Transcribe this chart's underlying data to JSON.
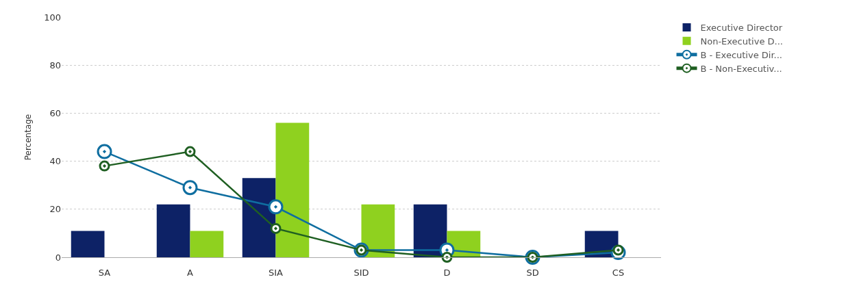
{
  "chart_data": {
    "type": "bar",
    "ylabel": "Percentage",
    "categories": [
      "SA",
      "A",
      "SIA",
      "SID",
      "D",
      "SD",
      "CS"
    ],
    "series": [
      {
        "name": "Executive Director",
        "color": "#0d2266",
        "values": [
          11,
          22,
          33,
          0,
          22,
          0,
          11
        ]
      },
      {
        "name": "Non-Executive D...",
        "color": "#8fd11f",
        "values": [
          0,
          11,
          56,
          22,
          11,
          0,
          0
        ]
      },
      {
        "name": "B - Executive Dir...",
        "color": "#0f6ea0",
        "type": "line",
        "values": [
          44,
          29,
          21,
          3,
          3,
          0,
          2
        ]
      },
      {
        "name": "B - Non-Executiv...",
        "color": "#1f5f22",
        "type": "line",
        "values": [
          38,
          44,
          12,
          3,
          0,
          0,
          3
        ]
      }
    ],
    "ylim": [
      0,
      100
    ],
    "yticks": [
      0,
      20,
      40,
      60,
      80,
      100
    ],
    "grid": "y",
    "legend": "top right",
    "marker": "circle",
    "line_style": "solid"
  }
}
